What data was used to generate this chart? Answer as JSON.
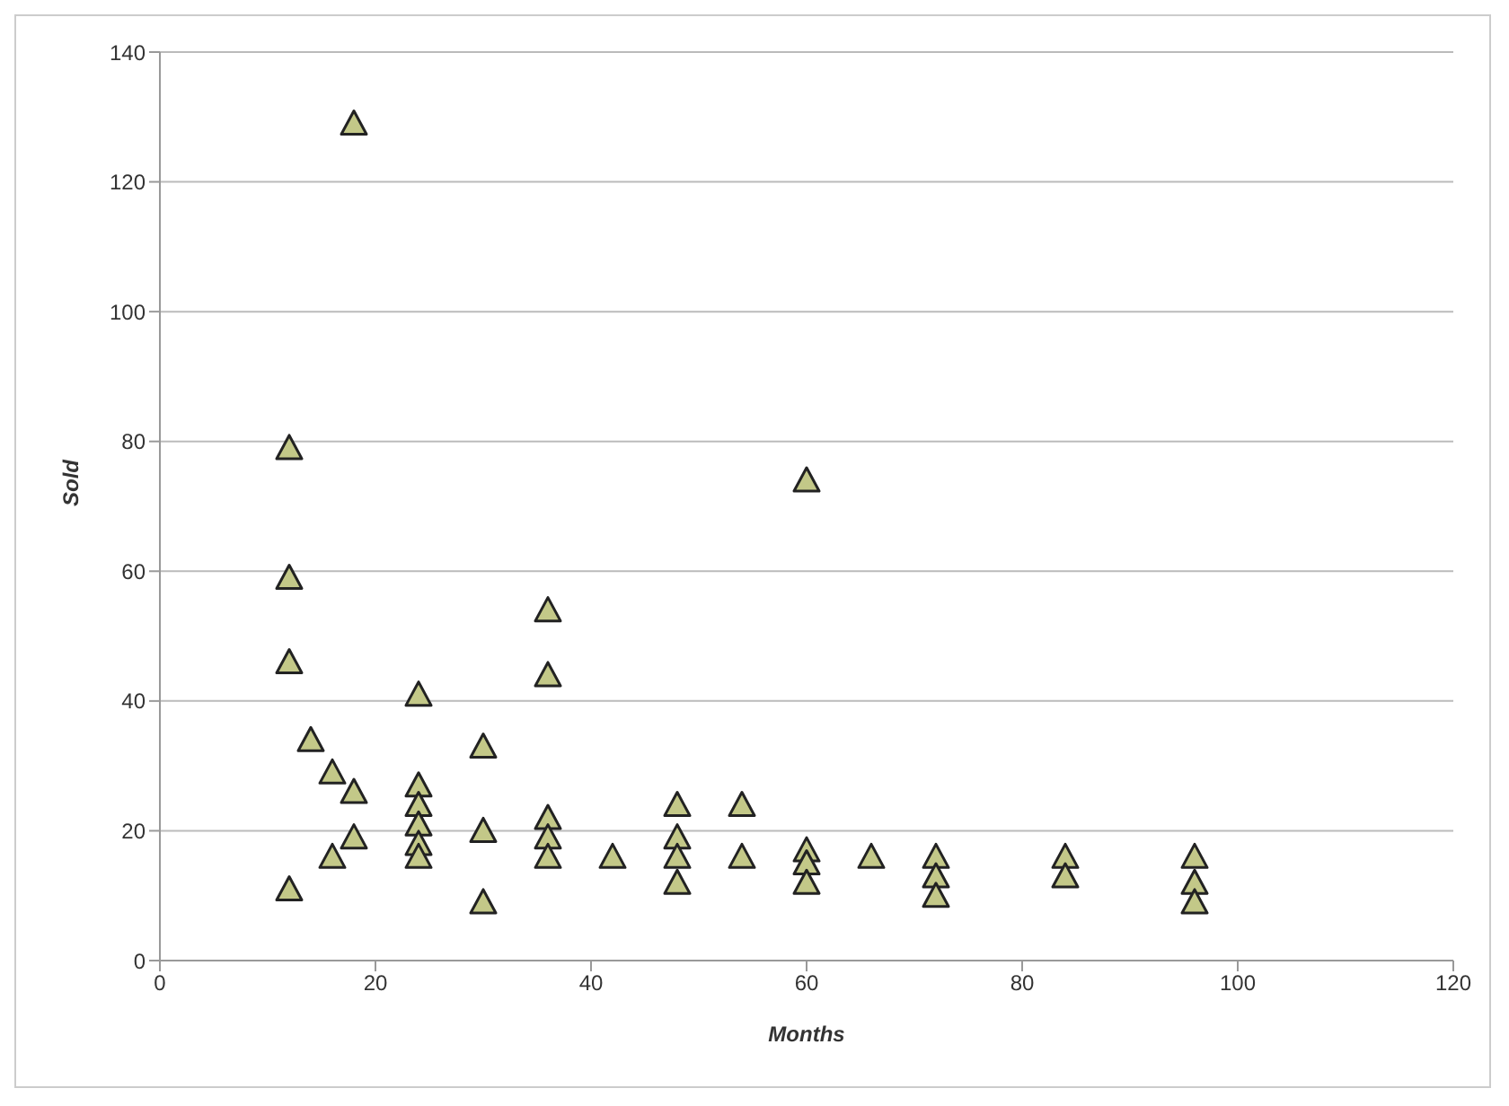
{
  "chart_data": {
    "type": "scatter",
    "xlabel": "Months",
    "ylabel": "Sold",
    "x": [
      18,
      12,
      12,
      12,
      12,
      14,
      16,
      18,
      18,
      16,
      24,
      24,
      24,
      24,
      24,
      24,
      30,
      30,
      30,
      36,
      36,
      36,
      36,
      36,
      42,
      48,
      48,
      48,
      48,
      54,
      54,
      60,
      60,
      60,
      60,
      66,
      72,
      72,
      72,
      84,
      84,
      96,
      96,
      96
    ],
    "values": [
      129,
      79,
      59,
      46,
      11,
      34,
      29,
      26,
      19,
      16,
      41,
      27,
      24,
      21,
      18,
      16,
      33,
      20,
      9,
      54,
      44,
      22,
      19,
      16,
      16,
      24,
      19,
      16,
      12,
      24,
      16,
      74,
      17,
      15,
      12,
      16,
      16,
      13,
      10,
      16,
      13,
      16,
      12,
      9
    ],
    "color": "#c3c888",
    "marker": "triangle",
    "grid": "y",
    "xlim": [
      0,
      120
    ],
    "xticks": [
      0,
      20,
      40,
      60,
      80,
      100,
      120
    ],
    "ylim": [
      0,
      140
    ],
    "yticks": [
      0,
      20,
      40,
      60,
      80,
      100,
      120,
      140
    ]
  }
}
